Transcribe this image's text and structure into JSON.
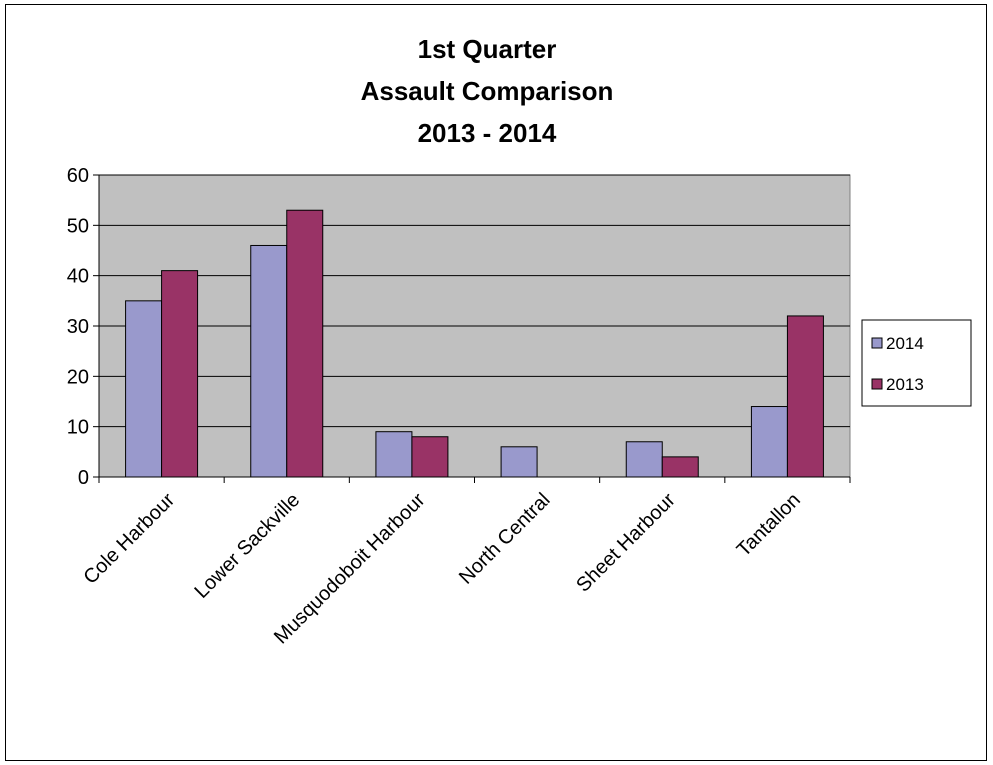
{
  "chart_data": {
    "type": "bar",
    "title": [
      "1st Quarter",
      "Assault Comparison",
      "2013 - 2014"
    ],
    "xlabel": "",
    "ylabel": "",
    "categories": [
      "Cole Harbour",
      "Lower Sackville",
      "Musquodoboit Harbour",
      "North Central",
      "Sheet Harbour",
      "Tantallon"
    ],
    "series": [
      {
        "name": "2014",
        "color": "#9999cc",
        "values": [
          35,
          46,
          9,
          6,
          7,
          14
        ]
      },
      {
        "name": "2013",
        "color": "#993366",
        "values": [
          41,
          53,
          8,
          0,
          4,
          32
        ]
      }
    ],
    "ylim": [
      0,
      60
    ],
    "yticks": [
      0,
      10,
      20,
      30,
      40,
      50,
      60
    ],
    "grid": true,
    "plot_background": "#c0c0c0",
    "legend_position": "right"
  }
}
